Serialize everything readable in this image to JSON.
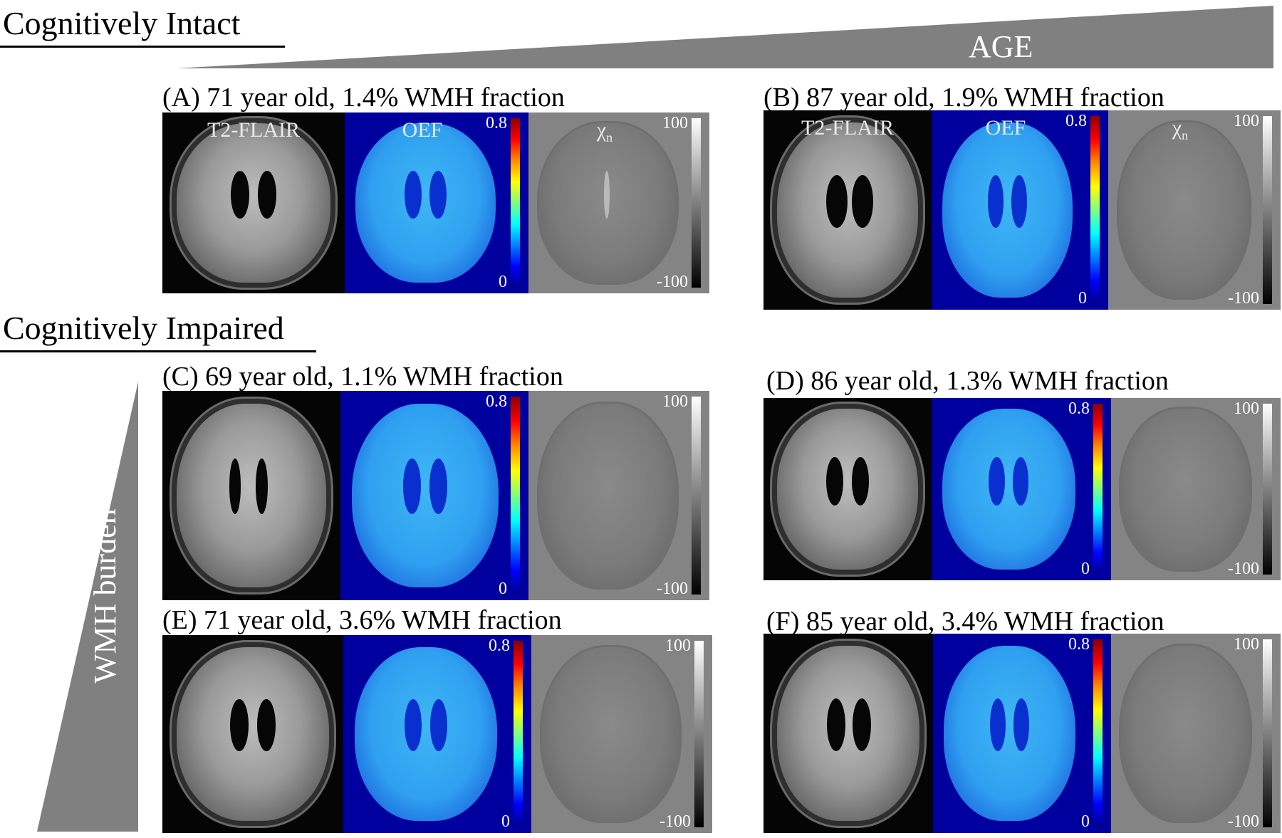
{
  "header": {
    "intact_title": "Cognitively Intact",
    "impaired_title": "Cognitively Impaired",
    "age_label": "AGE",
    "wmh_label": "WMH burden"
  },
  "tile_labels": {
    "flair": "T2-FLAIR",
    "oef": "OEF",
    "chi_symbol": "χ",
    "chi_sub": "n"
  },
  "colorbars": {
    "oef_max": "0.8",
    "oef_min": "0",
    "chi_max": "100",
    "chi_min": "-100"
  },
  "panels": [
    {
      "caption": "(A) 71 year old, 1.4% WMH fraction"
    },
    {
      "caption": "(B) 87 year old, 1.9% WMH fraction"
    },
    {
      "caption": "(C) 69 year old, 1.1% WMH fraction"
    },
    {
      "caption": "(D) 86 year old, 1.3% WMH fraction"
    },
    {
      "caption": "(E) 71 year old, 3.6% WMH fraction"
    },
    {
      "caption": "(F) 85 year old, 3.4% WMH fraction"
    }
  ],
  "colors": {
    "wedge": "#808080",
    "oef_background": "#00009e",
    "chi_background": "#848484"
  }
}
